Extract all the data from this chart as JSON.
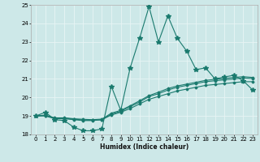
{
  "xlabel": "Humidex (Indice chaleur)",
  "xlim": [
    -0.5,
    23.5
  ],
  "ylim": [
    18,
    25
  ],
  "yticks": [
    18,
    19,
    20,
    21,
    22,
    23,
    24,
    25
  ],
  "xticks": [
    0,
    1,
    2,
    3,
    4,
    5,
    6,
    7,
    8,
    9,
    10,
    11,
    12,
    13,
    14,
    15,
    16,
    17,
    18,
    19,
    20,
    21,
    22,
    23
  ],
  "bg_color": "#cde8e8",
  "grid_color": "#e8f4f4",
  "line_color": "#1a7a6e",
  "lines": [
    {
      "x": [
        0,
        1,
        2,
        3,
        4,
        5,
        6,
        7,
        8,
        9,
        10,
        11,
        12,
        13,
        14,
        15,
        16,
        17,
        18,
        19,
        20,
        21,
        22,
        23
      ],
      "y": [
        19.0,
        19.2,
        18.8,
        18.75,
        18.4,
        18.2,
        18.2,
        18.3,
        20.6,
        19.3,
        21.6,
        23.2,
        24.9,
        23.0,
        24.4,
        23.2,
        22.5,
        21.5,
        21.6,
        21.0,
        21.1,
        21.2,
        20.9,
        20.4
      ],
      "marker": "*",
      "markersize": 4,
      "linewidth": 0.8
    },
    {
      "x": [
        0,
        1,
        2,
        3,
        4,
        5,
        6,
        7,
        8,
        9,
        10,
        11,
        12,
        13,
        14,
        15,
        16,
        17,
        18,
        19,
        20,
        21,
        22,
        23
      ],
      "y": [
        19.0,
        19.0,
        18.85,
        18.85,
        18.8,
        18.75,
        18.75,
        18.8,
        19.05,
        19.2,
        19.4,
        19.65,
        19.9,
        20.05,
        20.2,
        20.35,
        20.45,
        20.55,
        20.65,
        20.7,
        20.75,
        20.8,
        20.85,
        20.85
      ],
      "marker": "D",
      "markersize": 1.5,
      "linewidth": 0.8
    },
    {
      "x": [
        0,
        1,
        2,
        3,
        4,
        5,
        6,
        7,
        8,
        9,
        10,
        11,
        12,
        13,
        14,
        15,
        16,
        17,
        18,
        19,
        20,
        21,
        22,
        23
      ],
      "y": [
        19.0,
        19.02,
        18.88,
        18.88,
        18.83,
        18.78,
        18.77,
        18.79,
        19.1,
        19.25,
        19.5,
        19.75,
        20.05,
        20.2,
        20.4,
        20.55,
        20.65,
        20.75,
        20.85,
        20.9,
        20.95,
        21.0,
        21.05,
        21.02
      ],
      "marker": "D",
      "markersize": 1.5,
      "linewidth": 0.8
    },
    {
      "x": [
        0,
        1,
        2,
        3,
        4,
        5,
        6,
        7,
        8,
        9,
        10,
        11,
        12,
        13,
        14,
        15,
        16,
        17,
        18,
        19,
        20,
        21,
        22,
        23
      ],
      "y": [
        19.0,
        19.05,
        18.9,
        18.9,
        18.85,
        18.82,
        18.8,
        18.83,
        19.15,
        19.3,
        19.55,
        19.82,
        20.1,
        20.28,
        20.48,
        20.62,
        20.72,
        20.82,
        20.92,
        20.98,
        21.02,
        21.08,
        21.12,
        21.08
      ],
      "marker": "D",
      "markersize": 1.5,
      "linewidth": 0.8
    }
  ]
}
